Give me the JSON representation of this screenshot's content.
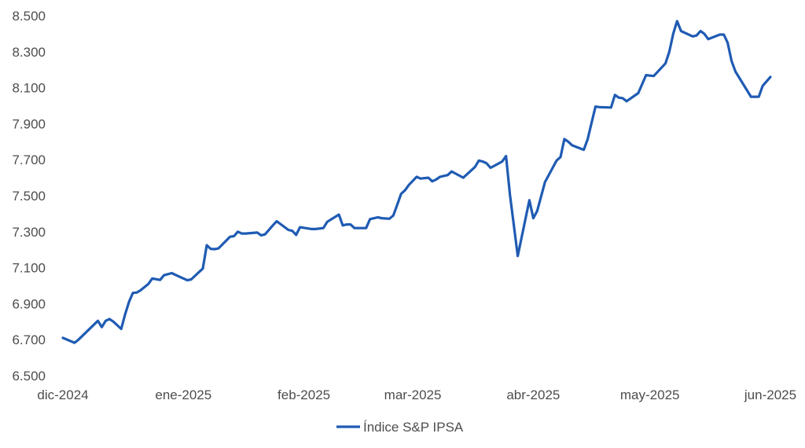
{
  "chart_data": {
    "type": "line",
    "title": "",
    "xlabel": "",
    "ylabel": "",
    "ylim": [
      6500,
      8500
    ],
    "y_ticks": [
      6500,
      6700,
      6900,
      7100,
      7300,
      7500,
      7700,
      7900,
      8100,
      8300,
      8500
    ],
    "y_tick_labels": [
      "6.500",
      "6.700",
      "6.900",
      "7.100",
      "7.300",
      "7.500",
      "7.700",
      "7.900",
      "8.100",
      "8.300",
      "8.500"
    ],
    "x_ticks": [
      "2024-12-01",
      "2025-01-01",
      "2025-02-01",
      "2025-03-01",
      "2025-04-01",
      "2025-05-01",
      "2025-06-01"
    ],
    "x_tick_labels": [
      "dic-2024",
      "ene-2025",
      "feb-2025",
      "mar-2025",
      "abr-2025",
      "may-2025",
      "jun-2025"
    ],
    "grid": false,
    "legend_position": "bottom",
    "series": [
      {
        "name": "Índice S&P IPSA",
        "color": "#1f5bb3",
        "x": [
          "2024-12-01",
          "2024-12-04",
          "2024-12-05",
          "2024-12-10",
          "2024-12-11",
          "2024-12-12",
          "2024-12-13",
          "2024-12-14",
          "2024-12-16",
          "2024-12-17",
          "2024-12-18",
          "2024-12-19",
          "2024-12-20",
          "2024-12-21",
          "2024-12-23",
          "2024-12-24",
          "2024-12-26",
          "2024-12-27",
          "2024-12-29",
          "2024-12-30",
          "2025-01-02",
          "2025-01-03",
          "2025-01-06",
          "2025-01-07",
          "2025-01-08",
          "2025-01-09",
          "2025-01-10",
          "2025-01-13",
          "2025-01-14",
          "2025-01-15",
          "2025-01-16",
          "2025-01-17",
          "2025-01-20",
          "2025-01-21",
          "2025-01-22",
          "2025-01-24",
          "2025-01-25",
          "2025-01-28",
          "2025-01-29",
          "2025-01-30",
          "2025-01-31",
          "2025-02-03",
          "2025-02-04",
          "2025-02-06",
          "2025-02-07",
          "2025-02-10",
          "2025-02-11",
          "2025-02-12",
          "2025-02-13",
          "2025-02-14",
          "2025-02-17",
          "2025-02-18",
          "2025-02-20",
          "2025-02-21",
          "2025-02-23",
          "2025-02-24",
          "2025-02-25",
          "2025-02-26",
          "2025-02-27",
          "2025-02-28",
          "2025-03-02",
          "2025-03-03",
          "2025-03-05",
          "2025-03-06",
          "2025-03-07",
          "2025-03-08",
          "2025-03-10",
          "2025-03-11",
          "2025-03-14",
          "2025-03-17",
          "2025-03-18",
          "2025-03-19",
          "2025-03-20",
          "2025-03-21",
          "2025-03-24",
          "2025-03-25",
          "2025-03-26",
          "2025-03-28",
          "2025-03-31",
          "2025-04-01",
          "2025-04-02",
          "2025-04-04",
          "2025-04-07",
          "2025-04-08",
          "2025-04-09",
          "2025-04-10",
          "2025-04-11",
          "2025-04-14",
          "2025-04-15",
          "2025-04-16",
          "2025-04-17",
          "2025-04-18",
          "2025-04-21",
          "2025-04-22",
          "2025-04-23",
          "2025-04-24",
          "2025-04-25",
          "2025-04-28",
          "2025-04-30",
          "2025-05-02",
          "2025-05-05",
          "2025-05-06",
          "2025-05-07",
          "2025-05-08",
          "2025-05-09",
          "2025-05-12",
          "2025-05-13",
          "2025-05-14",
          "2025-05-15",
          "2025-05-16",
          "2025-05-19",
          "2025-05-20",
          "2025-05-21",
          "2025-05-22",
          "2025-05-23",
          "2025-05-27",
          "2025-05-28",
          "2025-05-29",
          "2025-05-30",
          "2025-06-01"
        ],
        "values": [
          6710,
          6683,
          6700,
          6805,
          6770,
          6805,
          6815,
          6800,
          6760,
          6840,
          6910,
          6960,
          6962,
          6975,
          7010,
          7040,
          7032,
          7058,
          7070,
          7060,
          7030,
          7035,
          7095,
          7225,
          7205,
          7203,
          7207,
          7272,
          7275,
          7300,
          7290,
          7290,
          7295,
          7280,
          7285,
          7335,
          7358,
          7310,
          7305,
          7282,
          7325,
          7315,
          7315,
          7320,
          7355,
          7395,
          7335,
          7340,
          7340,
          7320,
          7320,
          7370,
          7380,
          7375,
          7372,
          7390,
          7450,
          7510,
          7530,
          7560,
          7605,
          7595,
          7600,
          7580,
          7590,
          7605,
          7615,
          7635,
          7600,
          7660,
          7695,
          7690,
          7680,
          7655,
          7690,
          7720,
          7505,
          7165,
          7475,
          7375,
          7415,
          7575,
          7695,
          7715,
          7815,
          7800,
          7780,
          7755,
          7815,
          7905,
          7995,
          7992,
          7990,
          8060,
          8045,
          8042,
          8025,
          8070,
          8170,
          8165,
          8235,
          8300,
          8400,
          8470,
          8415,
          8385,
          8390,
          8415,
          8400,
          8370,
          8395,
          8395,
          8350,
          8250,
          8190,
          8050,
          8050,
          8050,
          8110,
          8160
        ]
      }
    ]
  }
}
